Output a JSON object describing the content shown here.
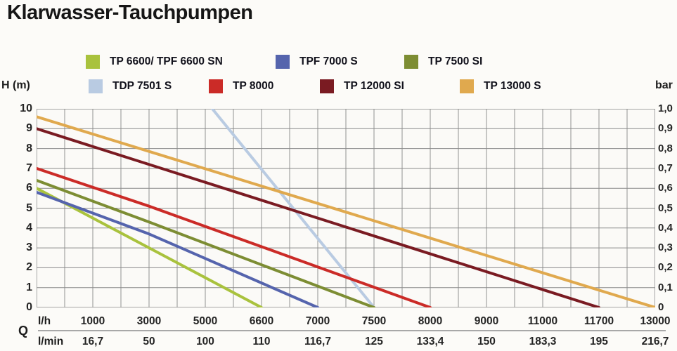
{
  "title": "Klarwasser-Tauchpumpen",
  "legend": {
    "rows": [
      [
        {
          "label": "TP 6600/ TPF 6600 SN",
          "color": "#a9c23d"
        },
        {
          "label": "TPF 7000 S",
          "color": "#5564ad"
        },
        {
          "label": "TP 7500 SI",
          "color": "#7d8d33"
        }
      ],
      [
        {
          "label": "TDP 7501 S",
          "color": "#b9cbe2"
        },
        {
          "label": "TP 8000",
          "color": "#cb2b27"
        },
        {
          "label": "TP 12000 SI",
          "color": "#7a1b22"
        },
        {
          "label": "TP 13000 S",
          "color": "#e0a94e"
        }
      ]
    ]
  },
  "axes": {
    "left_label": "H (m)",
    "right_label": "bar",
    "q_label": "Q",
    "lh_unit": "l/h",
    "lmin_unit": "l/min"
  },
  "chart_data": {
    "type": "line",
    "title": "Klarwasser-Tauchpumpen",
    "grid": true,
    "legend_position": "top",
    "x_axis": {
      "unit_top": "l/h",
      "unit_bottom": "l/min",
      "ticks_lh": [
        "1000",
        "3000",
        "5000",
        "6600",
        "7000",
        "7500",
        "8000",
        "9000",
        "11000",
        "11700",
        "13000"
      ],
      "ticks_lmin": [
        "16,7",
        "50",
        "100",
        "110",
        "116,7",
        "125",
        "133,4",
        "150",
        "183,3",
        "195",
        "216,7"
      ],
      "tick_values_lh": [
        1000,
        3000,
        5000,
        6600,
        7000,
        7500,
        8000,
        9000,
        11000,
        11700,
        13000
      ],
      "note": "non-linear axis: labeled ticks are equally spaced"
    },
    "y_axis_left": {
      "label": "H (m)",
      "ticks": [
        "10",
        "9",
        "8",
        "7",
        "6",
        "5",
        "4",
        "3",
        "2",
        "1",
        "0"
      ],
      "range": [
        0,
        10
      ]
    },
    "y_axis_right": {
      "label": "bar",
      "ticks": [
        "1,0",
        "0,9",
        "0,8",
        "0,7",
        "0,6",
        "0,5",
        "0,4",
        "0,3",
        "0,2",
        "0,1",
        "0"
      ],
      "range": [
        0,
        1
      ]
    },
    "series": [
      {
        "name": "TDP 7501 S",
        "color": "#b9cbe2",
        "points": [
          [
            5200,
            10
          ],
          [
            7500,
            0
          ]
        ]
      },
      {
        "name": "TP 6600/ TPF 6600 SN",
        "color": "#a9c23d",
        "points": [
          [
            0,
            6.0
          ],
          [
            6600,
            0
          ]
        ]
      },
      {
        "name": "TPF 7000 S",
        "color": "#5564ad",
        "points": [
          [
            0,
            5.8
          ],
          [
            3000,
            3.7
          ],
          [
            7000,
            0
          ]
        ]
      },
      {
        "name": "TP 7500 SI",
        "color": "#7d8d33",
        "points": [
          [
            0,
            6.4
          ],
          [
            3000,
            4.3
          ],
          [
            7500,
            0
          ]
        ]
      },
      {
        "name": "TP 8000",
        "color": "#cb2b27",
        "points": [
          [
            0,
            7.0
          ],
          [
            3000,
            5.1
          ],
          [
            8000,
            0
          ]
        ]
      },
      {
        "name": "TP 12000 SI",
        "color": "#7a1b22",
        "points": [
          [
            0,
            9.0
          ],
          [
            11700,
            0
          ]
        ]
      },
      {
        "name": "TP 13000 S",
        "color": "#e0a94e",
        "points": [
          [
            0,
            9.6
          ],
          [
            13000,
            0
          ]
        ]
      }
    ]
  }
}
